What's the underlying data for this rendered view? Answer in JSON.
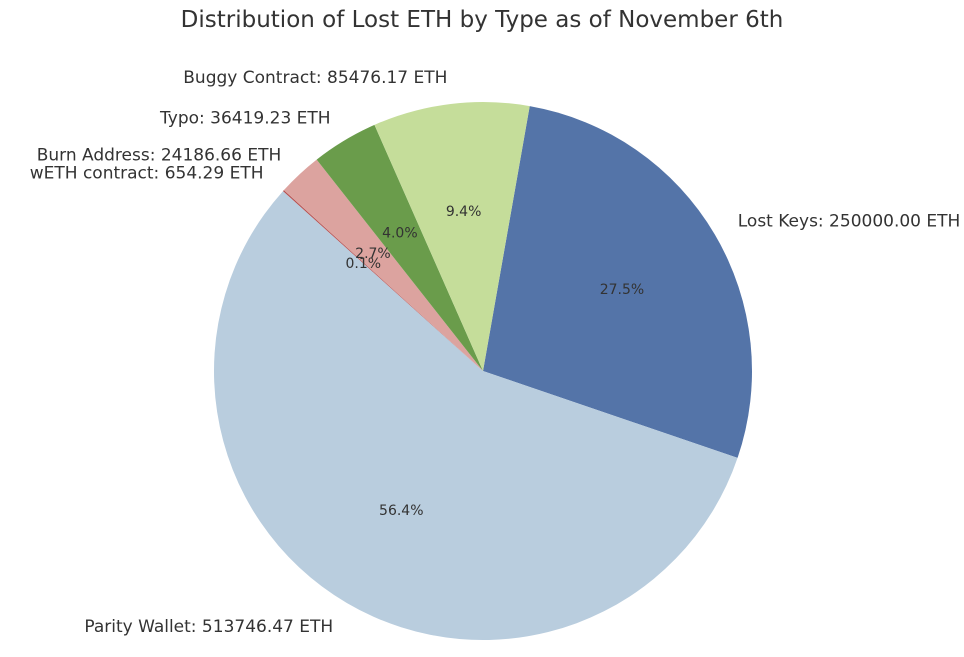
{
  "chart_data": {
    "type": "pie",
    "title": "Distribution of Lost ETH by Type as of November 6th",
    "slices": [
      {
        "category": "Lost Keys",
        "label": "Lost Keys: 250000.00 ETH",
        "value": 250000.0,
        "percent_label": "27.5%",
        "color": "#5474a8"
      },
      {
        "category": "Parity Wallet",
        "label": "Parity Wallet: 513746.47 ETH",
        "value": 513746.47,
        "percent_label": "56.4%",
        "color": "#b9cdde"
      },
      {
        "category": "wETH contract",
        "label": "wETH contract: 654.29 ETH",
        "value": 654.29,
        "percent_label": "0.1%",
        "color": "#b65050"
      },
      {
        "category": "Burn Address",
        "label": "Burn Address: 24186.66 ETH",
        "value": 24186.66,
        "percent_label": "2.7%",
        "color": "#dca39f"
      },
      {
        "category": "Typo",
        "label": "Typo: 36419.23 ETH",
        "value": 36419.23,
        "percent_label": "4.0%",
        "color": "#6a9c4b"
      },
      {
        "category": "Buggy Contract",
        "label": "Buggy Contract: 85476.17 ETH",
        "value": 85476.17,
        "percent_label": "9.4%",
        "color": "#c5dd9a"
      }
    ],
    "start_angle_deg": 80,
    "direction": "clockwise",
    "legend": "none"
  }
}
